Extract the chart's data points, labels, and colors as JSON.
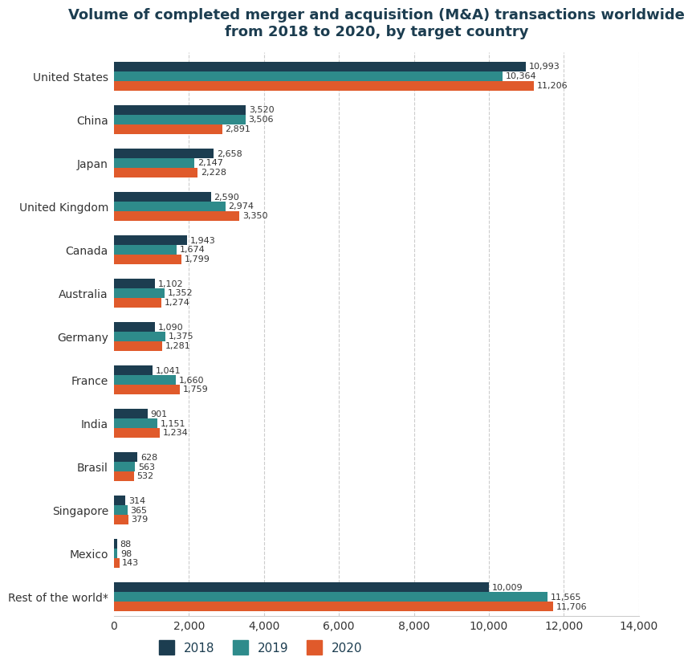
{
  "title": "Volume of completed merger and acquisition (M&A) transactions worldwide\nfrom 2018 to 2020, by target country",
  "categories": [
    "United States",
    "China",
    "Japan",
    "United Kingdom",
    "Canada",
    "Australia",
    "Germany",
    "France",
    "India",
    "Brasil",
    "Singapore",
    "Mexico",
    "Rest of the world*"
  ],
  "values_2018": [
    10993,
    3520,
    2658,
    2590,
    1943,
    1102,
    1090,
    1041,
    901,
    628,
    314,
    88,
    10009
  ],
  "values_2019": [
    10364,
    3506,
    2147,
    2974,
    1674,
    1352,
    1375,
    1660,
    1151,
    563,
    365,
    98,
    11565
  ],
  "values_2020": [
    11206,
    2891,
    2228,
    3350,
    1799,
    1274,
    1281,
    1759,
    1234,
    532,
    379,
    143,
    11706
  ],
  "color_2018": "#1c3d50",
  "color_2019": "#2e8b8b",
  "color_2020": "#e05a2b",
  "xlim": [
    0,
    14000
  ],
  "xticks": [
    0,
    2000,
    4000,
    6000,
    8000,
    10000,
    12000,
    14000
  ],
  "xlabel_labels": [
    "0",
    "2,000",
    "4,000",
    "6,000",
    "8,000",
    "10,000",
    "12,000",
    "14,000"
  ],
  "background_color": "#ffffff",
  "grid_color": "#cccccc",
  "title_color": "#1c3d50",
  "label_color": "#333333",
  "bar_height": 0.22,
  "title_fontsize": 13,
  "label_fontsize": 10,
  "tick_fontsize": 10,
  "value_fontsize": 8
}
